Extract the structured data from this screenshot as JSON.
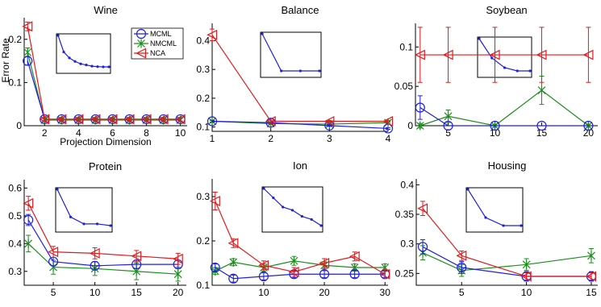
{
  "colors": {
    "MCML": "#1f1fe0",
    "NMCML": "#1a8f1a",
    "NCA": "#e31a1c"
  },
  "chart_data": [
    {
      "type": "line",
      "title": "Wine",
      "xlabel": "Projection Dimension",
      "ylabel": "Error Rate",
      "x": [
        1,
        2,
        3,
        4,
        5,
        6,
        7,
        8,
        9,
        10
      ],
      "xlim": [
        0.8,
        10.4
      ],
      "ylim": [
        0,
        0.25
      ],
      "xticks": [
        2,
        4,
        6,
        8,
        10
      ],
      "xtick_labels": [
        "2",
        "4",
        "6",
        "8",
        "10"
      ],
      "yticks": [
        0,
        0.1,
        0.2
      ],
      "ytick_labels": [
        "0",
        "0.1",
        "0.2"
      ],
      "legend": {
        "position": "top-right",
        "entries": [
          "MCML",
          "NMCML",
          "NCA"
        ]
      },
      "inset": [
        0.15,
        0.08,
        0.055,
        0.04,
        0.03,
        0.025,
        0.02,
        0.018,
        0.017,
        0.017
      ],
      "series": [
        {
          "name": "MCML",
          "values": [
            0.15,
            0.015,
            0.015,
            0.015,
            0.015,
            0.015,
            0.015,
            0.015,
            0.015,
            0.015
          ],
          "err": [
            0.01,
            0.004,
            0.004,
            0.004,
            0.004,
            0.004,
            0.004,
            0.004,
            0.004,
            0.004
          ]
        },
        {
          "name": "NMCML",
          "values": [
            0.17,
            0.013,
            0.013,
            0.013,
            0.013,
            0.013,
            0.013,
            0.013,
            0.013,
            0.013
          ],
          "err": [
            0.01,
            0.004,
            0.004,
            0.004,
            0.004,
            0.004,
            0.004,
            0.004,
            0.004,
            0.004
          ]
        },
        {
          "name": "NCA",
          "values": [
            0.23,
            0.015,
            0.015,
            0.015,
            0.015,
            0.015,
            0.015,
            0.015,
            0.015,
            0.015
          ],
          "err": [
            0.01,
            0.004,
            0.004,
            0.004,
            0.004,
            0.004,
            0.004,
            0.004,
            0.004,
            0.004
          ]
        }
      ]
    },
    {
      "type": "line",
      "title": "Balance",
      "xlabel": "",
      "ylabel": "",
      "x": [
        1,
        2,
        3,
        4
      ],
      "xlim": [
        1,
        4
      ],
      "ylim": [
        0.085,
        0.46
      ],
      "xticks": [
        1,
        2,
        3,
        4
      ],
      "xtick_labels": [
        "1",
        "2",
        "3",
        "4"
      ],
      "yticks": [
        0.1,
        0.2,
        0.3,
        0.4
      ],
      "ytick_labels": [
        "0.1",
        "0.2",
        "0.3",
        "0.4"
      ],
      "inset": [
        0.42,
        0.16,
        0.16,
        0.16
      ],
      "series": [
        {
          "name": "MCML",
          "values": [
            0.12,
            0.115,
            0.105,
            0.095
          ],
          "err": [
            0.003,
            0.003,
            0.003,
            0.003
          ]
        },
        {
          "name": "NMCML",
          "values": [
            0.12,
            0.112,
            0.11,
            0.115
          ],
          "err": [
            0.003,
            0.003,
            0.003,
            0.003
          ]
        },
        {
          "name": "NCA",
          "values": [
            0.42,
            0.12,
            0.12,
            0.12
          ],
          "err": [
            0.02,
            0.004,
            0.003,
            0.003
          ]
        }
      ]
    },
    {
      "type": "line",
      "title": "Soybean",
      "xlabel": "",
      "ylabel": "",
      "x": [
        2,
        5,
        10,
        15,
        20
      ],
      "xlim": [
        1.5,
        21
      ],
      "ylim": [
        0,
        0.13
      ],
      "xticks": [
        5,
        10,
        15,
        20
      ],
      "xtick_labels": [
        "5",
        "10",
        "15",
        "20"
      ],
      "yticks": [
        0,
        0.05,
        0.1
      ],
      "ytick_labels": [
        "0",
        "0.05",
        "0.1"
      ],
      "inset": [
        0.12,
        0.09,
        0.075,
        0.07,
        0.07
      ],
      "series": [
        {
          "name": "MCML",
          "values": [
            0.023,
            0,
            0,
            0,
            0
          ],
          "err": [
            0.015,
            0,
            0,
            0,
            0
          ]
        },
        {
          "name": "NMCML",
          "values": [
            0,
            0.012,
            0,
            0.045,
            0
          ],
          "err": [
            0.003,
            0.008,
            0.002,
            0.018,
            0.002
          ]
        },
        {
          "name": "NCA",
          "values": [
            0.09,
            0.09,
            0.09,
            0.09,
            0.09
          ],
          "err": [
            0.035,
            0.035,
            0.035,
            0.035,
            0.035
          ]
        }
      ]
    },
    {
      "type": "line",
      "title": "Protein",
      "xlabel": "",
      "ylabel": "",
      "x": [
        2,
        5,
        10,
        15,
        20
      ],
      "xlim": [
        1.5,
        21
      ],
      "ylim": [
        0.25,
        0.63
      ],
      "xticks": [
        5,
        10,
        15,
        20
      ],
      "xtick_labels": [
        "5",
        "10",
        "15",
        "20"
      ],
      "yticks": [
        0.3,
        0.4,
        0.5,
        0.6
      ],
      "ytick_labels": [
        "0.3",
        "0.4",
        "0.5",
        "0.6"
      ],
      "inset": [
        0.6,
        0.44,
        0.4,
        0.4,
        0.39
      ],
      "series": [
        {
          "name": "MCML",
          "values": [
            0.485,
            0.335,
            0.32,
            0.325,
            0.325
          ],
          "err": [
            0.02,
            0.015,
            0.015,
            0.015,
            0.015
          ]
        },
        {
          "name": "NMCML",
          "values": [
            0.4,
            0.315,
            0.31,
            0.3,
            0.29
          ],
          "err": [
            0.03,
            0.025,
            0.025,
            0.03,
            0.025
          ]
        },
        {
          "name": "NCA",
          "values": [
            0.545,
            0.37,
            0.365,
            0.355,
            0.345
          ],
          "err": [
            0.025,
            0.02,
            0.02,
            0.02,
            0.02
          ]
        }
      ]
    },
    {
      "type": "line",
      "title": "Ion",
      "xlabel": "",
      "ylabel": "",
      "x": [
        2,
        5,
        10,
        15,
        20,
        25,
        30
      ],
      "xlim": [
        1.5,
        30.5
      ],
      "ylim": [
        0.1,
        0.34
      ],
      "xticks": [
        10,
        20,
        30
      ],
      "xtick_labels": [
        "10",
        "20",
        "30"
      ],
      "yticks": [
        0.1,
        0.2,
        0.3
      ],
      "ytick_labels": [
        "0.1",
        "0.2",
        "0.3"
      ],
      "inset": [
        0.3,
        0.27,
        0.24,
        0.23,
        0.21,
        0.2,
        0.18
      ],
      "series": [
        {
          "name": "MCML",
          "values": [
            0.14,
            0.115,
            0.12,
            0.125,
            0.125,
            0.125,
            0.125
          ],
          "err": [
            0.008,
            0.008,
            0.008,
            0.008,
            0.008,
            0.008,
            0.008
          ]
        },
        {
          "name": "NMCML",
          "values": [
            0.132,
            0.152,
            0.14,
            0.155,
            0.145,
            0.14,
            0.14
          ],
          "err": [
            0.008,
            0.008,
            0.008,
            0.01,
            0.008,
            0.008,
            0.008
          ]
        },
        {
          "name": "NCA",
          "values": [
            0.29,
            0.195,
            0.145,
            0.13,
            0.15,
            0.165,
            0.125
          ],
          "err": [
            0.02,
            0.01,
            0.01,
            0.01,
            0.01,
            0.01,
            0.01
          ]
        }
      ]
    },
    {
      "type": "line",
      "title": "Housing",
      "xlabel": "",
      "ylabel": "",
      "x": [
        2,
        5,
        10,
        15
      ],
      "xlim": [
        1.5,
        15.5
      ],
      "ylim": [
        0.23,
        0.41
      ],
      "xticks": [
        5,
        10,
        15
      ],
      "xtick_labels": [
        "5",
        "10",
        "15"
      ],
      "yticks": [
        0.25,
        0.3,
        0.35,
        0.4
      ],
      "ytick_labels": [
        "0.25",
        "0.3",
        "0.35",
        "0.4"
      ],
      "inset": [
        0.4,
        0.33,
        0.31,
        0.31
      ],
      "series": [
        {
          "name": "MCML",
          "values": [
            0.295,
            0.26,
            0.245,
            0.245
          ],
          "err": [
            0.012,
            0.01,
            0.008,
            0.008
          ]
        },
        {
          "name": "NMCML",
          "values": [
            0.285,
            0.255,
            0.265,
            0.28
          ],
          "err": [
            0.012,
            0.01,
            0.01,
            0.012
          ]
        },
        {
          "name": "NCA",
          "values": [
            0.36,
            0.28,
            0.245,
            0.245
          ],
          "err": [
            0.012,
            0.008,
            0.006,
            0.006
          ]
        }
      ]
    }
  ]
}
